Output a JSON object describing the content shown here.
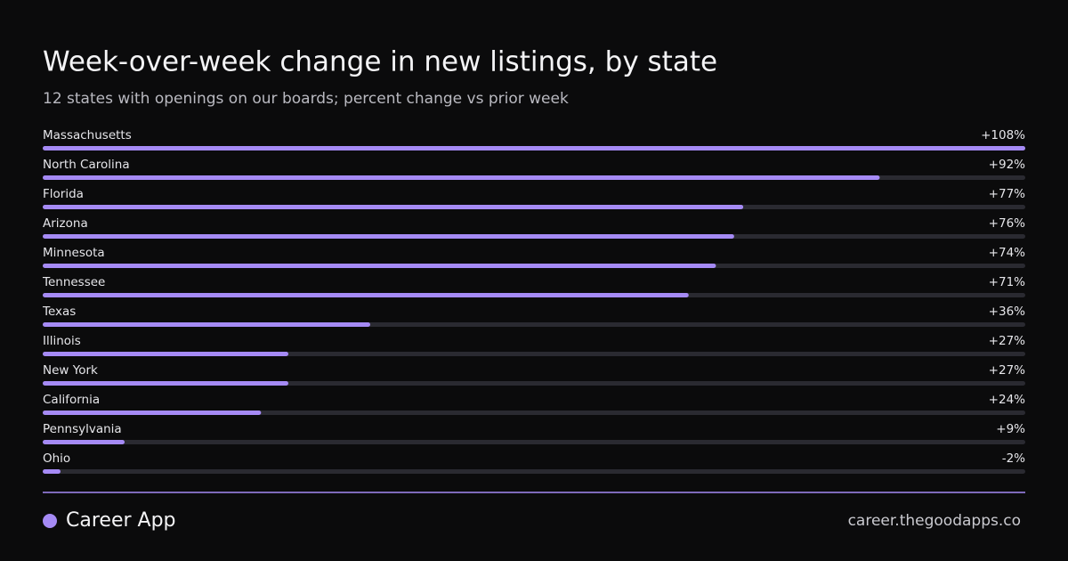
{
  "chart_data": {
    "type": "bar",
    "orientation": "horizontal",
    "title": "Week-over-week  change in new listings, by state",
    "subtitle": "12 states with openings on our boards; percent change vs prior week",
    "categories": [
      "Massachusetts",
      "North Carolina",
      "Florida",
      "Arizona",
      "Minnesota",
      "Tennessee",
      "Texas",
      "Illinois",
      "New York",
      "California",
      "Pennsylvania",
      "Ohio"
    ],
    "values": [
      108,
      92,
      77,
      76,
      74,
      71,
      36,
      27,
      27,
      24,
      9,
      -2
    ],
    "value_labels": [
      "+108%",
      "+92%",
      "+77%",
      "+76%",
      "+74%",
      "+71%",
      "+36%",
      "+27%",
      "+27%",
      "+24%",
      "+9%",
      "-2%"
    ],
    "color": "#a58af5",
    "xlim": [
      0,
      108
    ]
  },
  "footer": {
    "brand": "Career App",
    "url": "career.thegoodapps.co"
  }
}
